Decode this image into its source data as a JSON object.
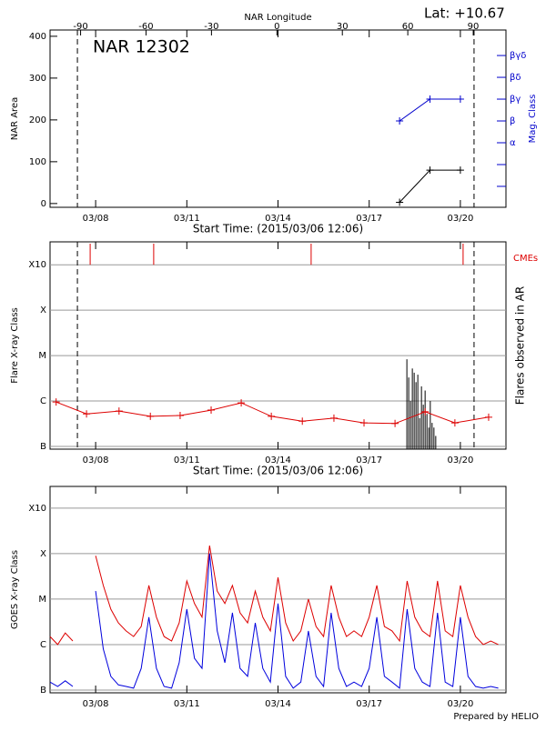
{
  "chart_data": [
    {
      "type": "line",
      "title": "NAR 12302",
      "annotation": "Lat: +10.67",
      "xlabel": "Start Time: (2015/03/06 12:06)",
      "x2label": "NAR Longitude",
      "ylabel": "NAR Area",
      "y2label": "Mag. Class",
      "xlim": [
        0,
        15
      ],
      "xticks": [
        {
          "value": 1.5,
          "label": "03/08"
        },
        {
          "value": 4.5,
          "label": "03/11"
        },
        {
          "value": 7.5,
          "label": "03/14"
        },
        {
          "value": 10.5,
          "label": "03/17"
        },
        {
          "value": 13.5,
          "label": "03/20"
        }
      ],
      "x2lim": [
        -104,
        105
      ],
      "x2ticks": [
        -90,
        -60,
        -30,
        0,
        30,
        60,
        90
      ],
      "ylim": [
        -9,
        415
      ],
      "yticks": [
        0,
        100,
        200,
        300,
        400
      ],
      "y2lim": [
        0.04,
        8.17
      ],
      "y2ticks": [
        {
          "value": 1,
          "label": null
        },
        {
          "value": 2,
          "label": null
        },
        {
          "value": 3,
          "label": "α"
        },
        {
          "value": 4,
          "label": "β"
        },
        {
          "value": 5,
          "label": "βγ"
        },
        {
          "value": 6,
          "label": "βδ"
        },
        {
          "value": 7,
          "label": "βγδ"
        }
      ],
      "y2color": "#0000cc",
      "vlines": [
        0.9,
        13.95
      ],
      "series": [
        {
          "color": "#000000",
          "marker": "plus",
          "x": [
            11.5,
            12.5,
            13.5
          ],
          "values": [
            3,
            80,
            80
          ]
        },
        {
          "color": "#0000cc",
          "marker": "plus",
          "axis": "y2",
          "x": [
            11.5,
            12.5,
            13.5
          ],
          "values": [
            4,
            5,
            5
          ]
        }
      ]
    },
    {
      "type": "line",
      "xlabel": "Start Time: (2015/03/06 12:06)",
      "ylabel": "Flare X-ray Class",
      "y2label": "Flares observed in AR",
      "cme_label": "CMEs",
      "log_scale": true,
      "grid": true,
      "xlim": [
        0,
        15
      ],
      "xticks": [
        {
          "value": 1.5,
          "label": "03/08"
        },
        {
          "value": 4.5,
          "label": "03/11"
        },
        {
          "value": 7.5,
          "label": "03/14"
        },
        {
          "value": 10.5,
          "label": "03/17"
        },
        {
          "value": 13.5,
          "label": "03/20"
        }
      ],
      "ylim": [
        8.7e-08,
        0.0032
      ],
      "yticks": [
        {
          "value": 1e-07,
          "label": "B"
        },
        {
          "value": 1e-06,
          "label": "C"
        },
        {
          "value": 1e-05,
          "label": "M"
        },
        {
          "value": 0.0001,
          "label": "X"
        },
        {
          "value": 0.001,
          "label": "X10"
        }
      ],
      "vlines": [
        0.9,
        13.95
      ],
      "cme_color": "#dd0000",
      "cmes": [
        1.32,
        3.41,
        8.59,
        13.59
      ],
      "flares": {
        "color": "#000000",
        "x": [
          11.74,
          11.8,
          11.86,
          11.92,
          11.98,
          12.04,
          12.1,
          12.16,
          12.22,
          12.28,
          12.34,
          12.4,
          12.46,
          12.51,
          12.57,
          12.63,
          12.69
        ],
        "values": [
          8.3e-06,
          3.3e-06,
          1e-06,
          5.2e-06,
          4.2e-06,
          2.6e-06,
          3.8e-06,
          4.2e-07,
          2.1e-06,
          8.3e-07,
          1.7e-06,
          5.2e-07,
          2.6e-07,
          1e-06,
          3.3e-07,
          2.6e-07,
          1.7e-07
        ]
      },
      "series": [
        {
          "color": "#dd0000",
          "marker": "plus",
          "x": [
            0.2,
            1.2,
            2.27,
            3.3,
            4.28,
            5.3,
            6.29,
            7.28,
            8.3,
            9.34,
            10.33,
            11.35,
            12.34,
            13.32,
            14.43
          ],
          "values": [
            9.5e-07,
            5.2e-07,
            6e-07,
            4.6e-07,
            4.8e-07,
            6.3e-07,
            9.1e-07,
            4.6e-07,
            3.6e-07,
            4.2e-07,
            3.3e-07,
            3.2e-07,
            5.8e-07,
            3.3e-07,
            4.4e-07
          ]
        }
      ]
    },
    {
      "type": "line",
      "ylabel": "GOES X-ray Class",
      "footer": "Prepared by HELIO",
      "log_scale": true,
      "grid": true,
      "xlim": [
        0,
        15
      ],
      "xticks": [
        {
          "value": 1.5,
          "label": "03/08"
        },
        {
          "value": 4.5,
          "label": "03/11"
        },
        {
          "value": 7.5,
          "label": "03/14"
        },
        {
          "value": 10.5,
          "label": "03/17"
        },
        {
          "value": 13.5,
          "label": "03/20"
        }
      ],
      "ylim": [
        8.7e-08,
        0.003
      ],
      "yticks": [
        {
          "value": 1e-07,
          "label": "B"
        },
        {
          "value": 1e-06,
          "label": "C"
        },
        {
          "value": 1e-05,
          "label": "M"
        },
        {
          "value": 0.0001,
          "label": "X"
        },
        {
          "value": 0.001,
          "label": "X10"
        }
      ],
      "series": [
        {
          "color": "#dd0000",
          "x": [
            0,
            0.25,
            0.5,
            0.75,
            1,
            1.25,
            1.5,
            1.75,
            2,
            2.25,
            2.5,
            2.75,
            3,
            3.25,
            3.5,
            3.75,
            4,
            4.25,
            4.5,
            4.75,
            5,
            5.25,
            5.5,
            5.75,
            6,
            6.25,
            6.5,
            6.75,
            7,
            7.25,
            7.5,
            7.75,
            8,
            8.25,
            8.5,
            8.75,
            9,
            9.25,
            9.5,
            9.75,
            10,
            10.25,
            10.5,
            10.75,
            11,
            11.25,
            11.5,
            11.75,
            12,
            12.25,
            12.5,
            12.75,
            13,
            13.25,
            13.5,
            13.75,
            14,
            14.25,
            14.5,
            14.75
          ],
          "values": [
            1.5e-06,
            1e-06,
            1.8e-06,
            1.2e-06,
            null,
            null,
            9e-05,
            2e-05,
            6e-06,
            3e-06,
            2e-06,
            1.5e-06,
            2.5e-06,
            2e-05,
            4e-06,
            1.5e-06,
            1.2e-06,
            3e-06,
            2.5e-05,
            8e-06,
            4e-06,
            0.00015,
            1.5e-05,
            8e-06,
            2e-05,
            5e-06,
            3e-06,
            1.5e-05,
            4e-06,
            2e-06,
            3e-05,
            3e-06,
            1.2e-06,
            2e-06,
            1e-05,
            2.5e-06,
            1.5e-06,
            2e-05,
            4e-06,
            1.5e-06,
            2e-06,
            1.5e-06,
            4e-06,
            2e-05,
            2.5e-06,
            2e-06,
            1.2e-06,
            2.5e-05,
            4e-06,
            2e-06,
            1.5e-06,
            2.5e-05,
            2e-06,
            1.5e-06,
            2e-05,
            4e-06,
            1.5e-06,
            1e-06,
            1.2e-06,
            1e-06
          ]
        },
        {
          "color": "#0000dd",
          "x": [
            0,
            0.25,
            0.5,
            0.75,
            1,
            1.25,
            1.5,
            1.75,
            2,
            2.25,
            2.5,
            2.75,
            3,
            3.25,
            3.5,
            3.75,
            4,
            4.25,
            4.5,
            4.75,
            5,
            5.25,
            5.5,
            5.75,
            6,
            6.25,
            6.5,
            6.75,
            7,
            7.25,
            7.5,
            7.75,
            8,
            8.25,
            8.5,
            8.75,
            9,
            9.25,
            9.5,
            9.75,
            10,
            10.25,
            10.5,
            10.75,
            11,
            11.25,
            11.5,
            11.75,
            12,
            12.25,
            12.5,
            12.75,
            13,
            13.25,
            13.5,
            13.75,
            14,
            14.25,
            14.5,
            14.75
          ],
          "values": [
            1.5e-07,
            1.2e-07,
            1.6e-07,
            1.2e-07,
            null,
            null,
            1.5e-05,
            8e-07,
            2e-07,
            1.3e-07,
            1.2e-07,
            1.1e-07,
            3e-07,
            4e-06,
            3e-07,
            1.2e-07,
            1.1e-07,
            4e-07,
            6e-06,
            5e-07,
            3e-07,
            0.0001,
            2e-06,
            4e-07,
            5e-06,
            3e-07,
            2e-07,
            3e-06,
            3e-07,
            1.5e-07,
            8e-06,
            2e-07,
            1.1e-07,
            1.5e-07,
            2e-06,
            2e-07,
            1.2e-07,
            5e-06,
            3e-07,
            1.2e-07,
            1.5e-07,
            1.2e-07,
            3e-07,
            4e-06,
            2e-07,
            1.5e-07,
            1.1e-07,
            6e-06,
            3e-07,
            1.5e-07,
            1.2e-07,
            5e-06,
            1.5e-07,
            1.2e-07,
            4e-06,
            2e-07,
            1.2e-07,
            1.1e-07,
            1.2e-07,
            1.1e-07
          ]
        }
      ]
    }
  ]
}
